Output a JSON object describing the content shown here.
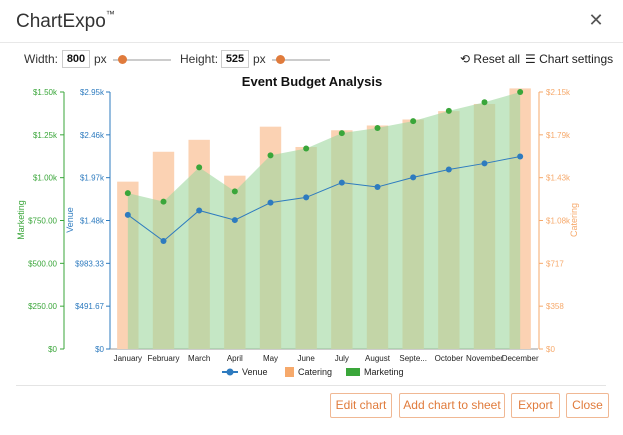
{
  "app": {
    "title": "ChartExpo",
    "trademark": "™"
  },
  "toolbar": {
    "width_label": "Width:",
    "width_value": "800",
    "px1": "px",
    "height_label": "Height:",
    "height_value": "525",
    "px2": "px",
    "reset_label": "Reset all",
    "settings_label": "Chart settings"
  },
  "buttons": {
    "edit": "Edit chart",
    "add": "Add chart to sheet",
    "export": "Export",
    "close": "Close"
  },
  "colors": {
    "venue": "#2e7bbf",
    "catering": "#f6a96b",
    "marketing": "#3aa63a",
    "accent": "#e07b3c"
  },
  "chart_data": {
    "type": "bar",
    "title": "Event Budget Analysis",
    "categories": [
      "January",
      "February",
      "March",
      "April",
      "May",
      "June",
      "July",
      "August",
      "Septe...",
      "October",
      "November",
      "December"
    ],
    "series": [
      {
        "name": "Venue",
        "type": "line",
        "axis": "left-inner",
        "values": [
          1540,
          1240,
          1590,
          1480,
          1680,
          1740,
          1910,
          1860,
          1970,
          2060,
          2130,
          2210
        ]
      },
      {
        "name": "Catering",
        "type": "bar",
        "axis": "right",
        "values": [
          1400,
          1650,
          1750,
          1450,
          1860,
          1690,
          1830,
          1870,
          1920,
          1990,
          2050,
          2180
        ]
      },
      {
        "name": "Marketing",
        "type": "area",
        "axis": "left-outer",
        "values": [
          910,
          860,
          1060,
          920,
          1130,
          1170,
          1260,
          1290,
          1330,
          1390,
          1440,
          1500
        ]
      }
    ],
    "axes": {
      "left_outer": {
        "label": "Marketing",
        "ticks": [
          "$0",
          "$250.00",
          "$500.00",
          "$750.00",
          "$1.00k",
          "$1.25k",
          "$1.50k"
        ],
        "range": [
          0,
          1500
        ]
      },
      "left_inner": {
        "label": "Venue",
        "ticks": [
          "$0",
          "$491.67",
          "$983.33",
          "$1.48k",
          "$1.97k",
          "$2.46k",
          "$2.95k"
        ],
        "range": [
          0,
          2950
        ]
      },
      "right": {
        "label": "Catering",
        "ticks": [
          "$0",
          "$358",
          "$717",
          "$1.08k",
          "$1.43k",
          "$1.79k",
          "$2.15k"
        ],
        "range": [
          0,
          2150
        ]
      }
    },
    "legend": {
      "position": "bottom",
      "entries": [
        "Venue",
        "Catering",
        "Marketing"
      ]
    }
  }
}
